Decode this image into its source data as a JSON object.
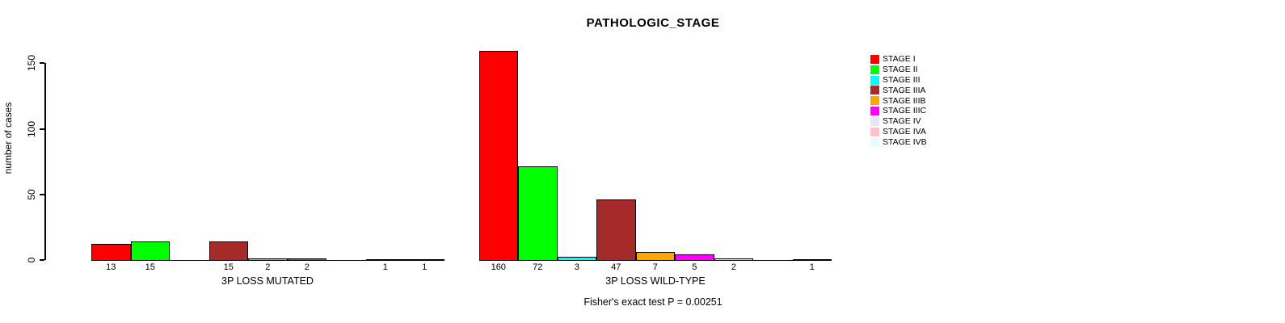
{
  "title": "PATHOLOGIC_STAGE",
  "annotation": "Fisher's exact test P = 0.00251",
  "chart_data": {
    "type": "bar",
    "title": "PATHOLOGIC_STAGE",
    "xlabel": "",
    "ylabel": "number of cases",
    "ylim": [
      0,
      165
    ],
    "yticks": [
      0,
      50,
      100,
      150
    ],
    "grid": false,
    "legend_position": "right",
    "bar_labels": "values shown under each nonzero bar",
    "categories": [
      "STAGE I",
      "STAGE II",
      "STAGE III",
      "STAGE IIIA",
      "STAGE IIIB",
      "STAGE IIIC",
      "STAGE IV",
      "STAGE IVA",
      "STAGE IVB"
    ],
    "colors": [
      "#FF0000",
      "#00FF00",
      "#00FFFF",
      "#A52A2A",
      "#FFA500",
      "#FF00FF",
      "#E6E6FA",
      "#FFC0CB",
      "#E0FFFF"
    ],
    "groups": [
      {
        "label": "3P LOSS MUTATED",
        "values": [
          13,
          15,
          0,
          15,
          2,
          2,
          0,
          1,
          1
        ]
      },
      {
        "label": "3P LOSS WILD-TYPE",
        "values": [
          160,
          72,
          3,
          47,
          7,
          5,
          2,
          0,
          1
        ]
      }
    ],
    "annotation": "Fisher's exact test P = 0.00251"
  },
  "legend": {
    "items": [
      {
        "label": "STAGE I",
        "color": "#FF0000"
      },
      {
        "label": "STAGE II",
        "color": "#00FF00"
      },
      {
        "label": "STAGE III",
        "color": "#00FFFF"
      },
      {
        "label": "STAGE IIIA",
        "color": "#A52A2A"
      },
      {
        "label": "STAGE IIIB",
        "color": "#FFA500"
      },
      {
        "label": "STAGE IIIC",
        "color": "#FF00FF"
      },
      {
        "label": "STAGE IV",
        "color": "#E6E6FA"
      },
      {
        "label": "STAGE IVA",
        "color": "#FFC0CB"
      },
      {
        "label": "STAGE IVB",
        "color": "#E0FFFF"
      }
    ]
  }
}
